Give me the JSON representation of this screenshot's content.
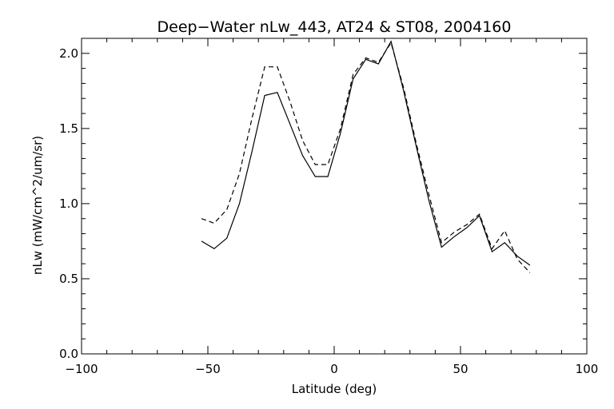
{
  "chart_data": {
    "type": "line",
    "title": "Deep−Water nLw_443, AT24 & ST08, 2004160",
    "xlabel": "Latitude (deg)",
    "ylabel": "nLw (mW/cm^2/um/sr)",
    "xlim": [
      -100,
      100
    ],
    "ylim": [
      0.0,
      2.1
    ],
    "xticks": [
      -100,
      -50,
      0,
      50,
      100
    ],
    "xtick_labels": [
      "−100",
      "−50",
      "0",
      "50",
      "100"
    ],
    "yticks": [
      0.0,
      0.5,
      1.0,
      1.5,
      2.0
    ],
    "ytick_labels": [
      "0.0",
      "0.5",
      "1.0",
      "1.5",
      "2.0"
    ],
    "x_minor_step": 10,
    "y_minor_step": 0.1,
    "grid": false,
    "series": [
      {
        "style": "solid",
        "color": "#000000",
        "x": [
          -52.5,
          -47.5,
          -42.5,
          -37.5,
          -32.5,
          -27.5,
          -22.5,
          -17.5,
          -12.5,
          -7.5,
          -2.5,
          2.5,
          7.5,
          12.5,
          17.5,
          22.5,
          27.5,
          32.5,
          37.5,
          42.5,
          47.5,
          52.5,
          57.5,
          62.5,
          67.5,
          72.5,
          77.5
        ],
        "y": [
          0.75,
          0.7,
          0.77,
          1.0,
          1.35,
          1.72,
          1.74,
          1.53,
          1.32,
          1.18,
          1.18,
          1.47,
          1.83,
          1.96,
          1.93,
          2.08,
          1.75,
          1.38,
          1.02,
          0.71,
          0.78,
          0.84,
          0.92,
          0.68,
          0.74,
          0.65,
          0.59
        ]
      },
      {
        "style": "dashed",
        "color": "#000000",
        "x": [
          -52.5,
          -47.5,
          -42.5,
          -37.5,
          -32.5,
          -27.5,
          -22.5,
          -17.5,
          -12.5,
          -7.5,
          -2.5,
          2.5,
          7.5,
          12.5,
          17.5,
          22.5,
          27.5,
          32.5,
          37.5,
          42.5,
          47.5,
          52.5,
          57.5,
          62.5,
          67.5,
          72.5,
          77.5
        ],
        "y": [
          0.9,
          0.87,
          0.96,
          1.2,
          1.57,
          1.91,
          1.91,
          1.68,
          1.42,
          1.26,
          1.26,
          1.5,
          1.86,
          1.97,
          1.94,
          2.07,
          1.77,
          1.4,
          1.06,
          0.74,
          0.81,
          0.86,
          0.93,
          0.7,
          0.82,
          0.63,
          0.54
        ]
      }
    ]
  }
}
